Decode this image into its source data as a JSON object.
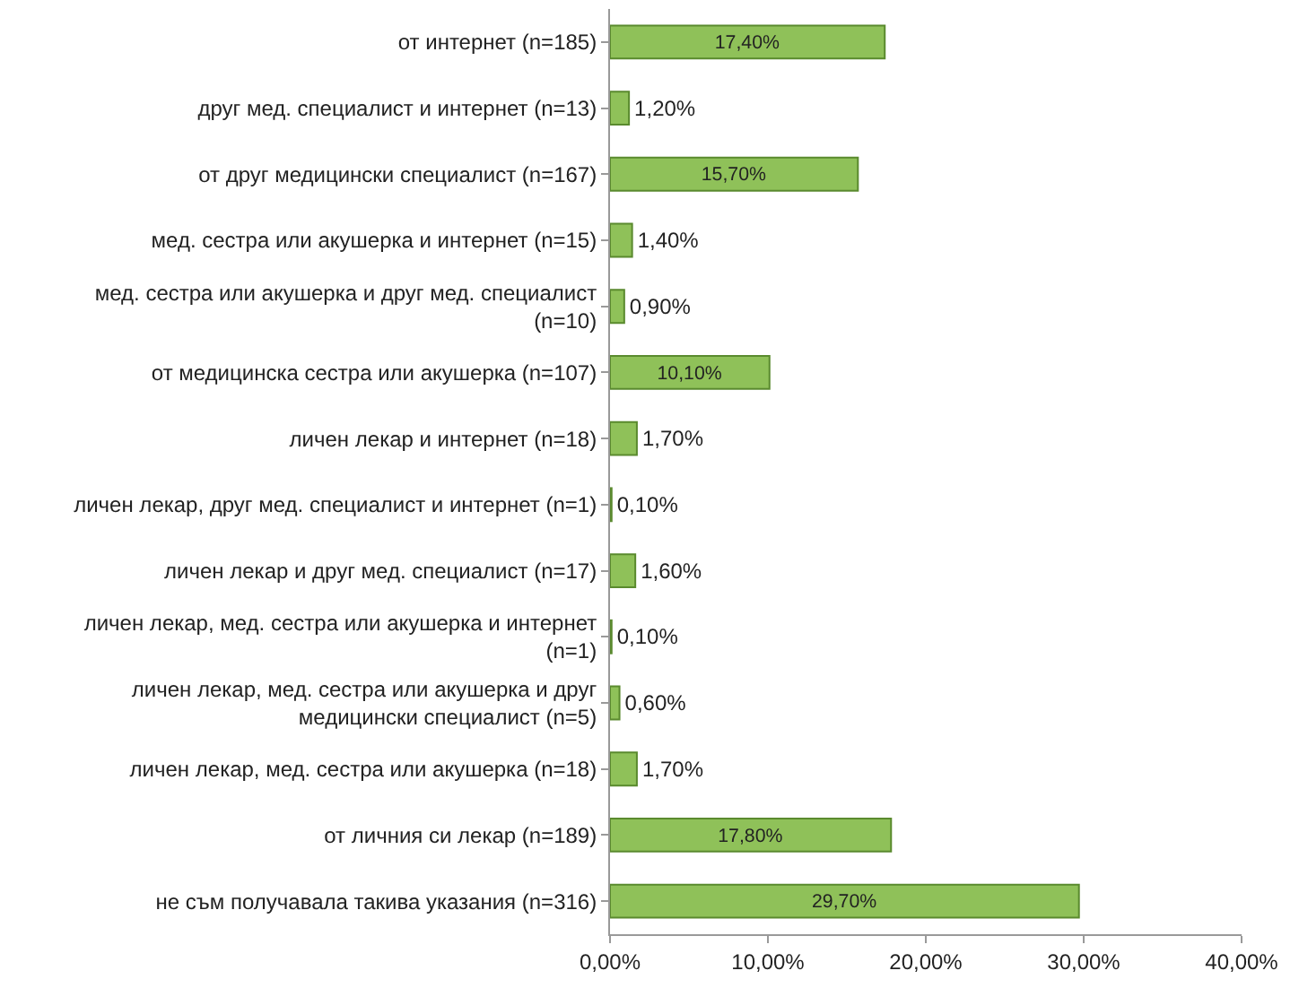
{
  "chart_data": {
    "type": "bar",
    "orientation": "horizontal",
    "categories": [
      "от интернет (n=185)",
      "друг мед. специалист и интернет (n=13)",
      "от друг медицински специалист (n=167)",
      "мед. сестра или акушерка и интернет (n=15)",
      "мед. сестра или акушерка и друг мед. специалист (n=10)",
      "от медицинска сестра или акушерка (n=107)",
      "личен лекар и интернет (n=18)",
      "личен лекар, друг мед. специалист и интернет (n=1)",
      "личен лекар и друг мед. специалист (n=17)",
      "личен лекар, мед. сестра или акушерка и интернет (n=1)",
      "личен лекар, мед. сестра или акушерка и друг медицински специалист (n=5)",
      "личен лекар, мед. сестра или акушерка (n=18)",
      "от личния си лекар (n=189)",
      "не съм получавала такива указания (n=316)"
    ],
    "values": [
      17.4,
      1.2,
      15.7,
      1.4,
      0.9,
      10.1,
      1.7,
      0.1,
      1.6,
      0.1,
      0.6,
      1.7,
      17.8,
      29.7
    ],
    "value_labels": [
      "17,40%",
      "1,20%",
      "15,70%",
      "1,40%",
      "0,90%",
      "10,10%",
      "1,70%",
      "0,10%",
      "1,60%",
      "0,10%",
      "0,60%",
      "1,70%",
      "17,80%",
      "29,70%"
    ],
    "color": "#8fc159",
    "xlim": [
      0,
      40
    ],
    "xticks": [
      {
        "value": 0,
        "label": "0,00%"
      },
      {
        "value": 10,
        "label": "10,00%"
      },
      {
        "value": 20,
        "label": "20,00%"
      },
      {
        "value": 30,
        "label": "30,00%"
      },
      {
        "value": 40,
        "label": "40,00%"
      }
    ],
    "grid": false
  }
}
